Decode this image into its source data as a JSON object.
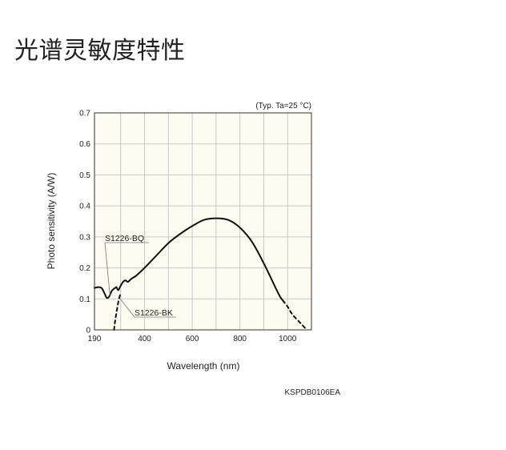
{
  "page": {
    "title": "光谱灵敏度特性"
  },
  "chart_data": {
    "type": "line",
    "note": "(Typ. Ta=25 °C)",
    "xlabel": "Wavelength (nm)",
    "ylabel": "Photo sensitivity (A/W)",
    "code": "KSPDB0106EA",
    "xlim": [
      190,
      1100
    ],
    "ylim": [
      0,
      0.7
    ],
    "x_ticks": [
      190,
      400,
      600,
      800,
      1000
    ],
    "y_ticks": [
      0,
      0.1,
      0.2,
      0.3,
      0.4,
      0.5,
      0.6,
      0.7
    ],
    "x_tick_labels": [
      "190",
      "400",
      "600",
      "800",
      "1000"
    ],
    "y_tick_labels": [
      "0",
      "0.1",
      "0.2",
      "0.3",
      "0.4",
      "0.5",
      "0.6",
      "0.7"
    ],
    "x_grid": [
      190,
      300,
      400,
      500,
      600,
      700,
      800,
      900,
      1000
    ],
    "y_grid": [
      0.1,
      0.2,
      0.3,
      0.4,
      0.5,
      0.6
    ],
    "grid": true,
    "series": [
      {
        "name": "S1226-BQ",
        "points": [
          [
            190,
            0.135
          ],
          [
            205,
            0.138
          ],
          [
            220,
            0.135
          ],
          [
            232,
            0.118
          ],
          [
            242,
            0.103
          ],
          [
            252,
            0.108
          ],
          [
            262,
            0.125
          ],
          [
            272,
            0.133
          ],
          [
            282,
            0.138
          ]
        ],
        "line_style": "solid"
      },
      {
        "name": "S1226-BK",
        "points": [
          [
            272,
            0
          ],
          [
            276,
            0.025
          ],
          [
            282,
            0.055
          ],
          [
            290,
            0.09
          ],
          [
            298,
            0.115
          ]
        ],
        "line_style": "dashed"
      },
      {
        "name": "",
        "points": [
          [
            282,
            0.138
          ],
          [
            290,
            0.128
          ],
          [
            298,
            0.14
          ],
          [
            310,
            0.155
          ],
          [
            320,
            0.16
          ],
          [
            330,
            0.155
          ],
          [
            345,
            0.165
          ],
          [
            365,
            0.175
          ],
          [
            400,
            0.2
          ],
          [
            450,
            0.24
          ],
          [
            500,
            0.28
          ],
          [
            550,
            0.31
          ],
          [
            600,
            0.335
          ],
          [
            650,
            0.355
          ],
          [
            700,
            0.36
          ],
          [
            750,
            0.355
          ],
          [
            800,
            0.33
          ],
          [
            850,
            0.285
          ],
          [
            900,
            0.215
          ],
          [
            950,
            0.135
          ],
          [
            970,
            0.105
          ],
          [
            980,
            0.095
          ]
        ],
        "line_style": "solid"
      },
      {
        "name": "",
        "points": [
          [
            980,
            0.095
          ],
          [
            1000,
            0.075
          ],
          [
            1020,
            0.05
          ],
          [
            1050,
            0.025
          ],
          [
            1075,
            0.005
          ]
        ],
        "line_style": "dashed"
      }
    ],
    "annotations": [
      {
        "text": "S1226-BQ",
        "target": [
          255,
          0.11
        ]
      },
      {
        "text": "S1226-BK",
        "target": [
          298,
          0.1
        ]
      }
    ],
    "colors": {
      "line": "#111111",
      "grid": "#c9c9c9",
      "frame": "#333333",
      "plot_bg": "#fdfbf0"
    }
  }
}
